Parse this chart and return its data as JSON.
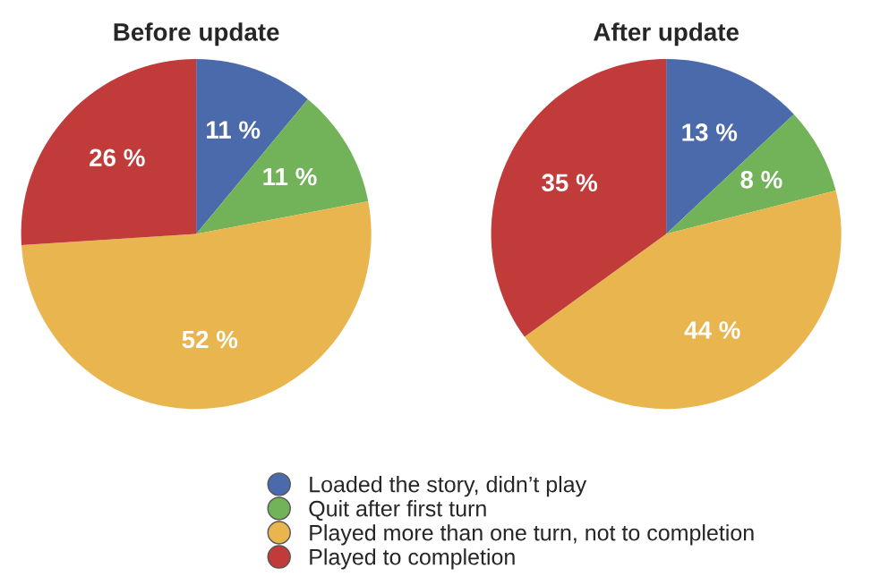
{
  "chart_data": [
    {
      "type": "pie",
      "title": "Before update",
      "categories": [
        "Loaded the story, didn’t play",
        "Quit after first turn",
        "Played more than one turn, not to completion",
        "Played to completion"
      ],
      "values": [
        11,
        11,
        52,
        26
      ],
      "value_labels": [
        "11 %",
        "11 %",
        "52 %",
        "26 %"
      ],
      "colors": [
        "#4a6aab",
        "#72b35a",
        "#e8b54f",
        "#c23b3b"
      ],
      "legend": "bottom"
    },
    {
      "type": "pie",
      "title": "After update",
      "values": [
        13,
        8,
        44,
        35
      ],
      "value_labels": [
        "13 %",
        "8 %",
        "44 %",
        "35 %"
      ],
      "colors": [
        "#4a6aab",
        "#72b35a",
        "#e8b54f",
        "#c23b3b"
      ]
    }
  ]
}
